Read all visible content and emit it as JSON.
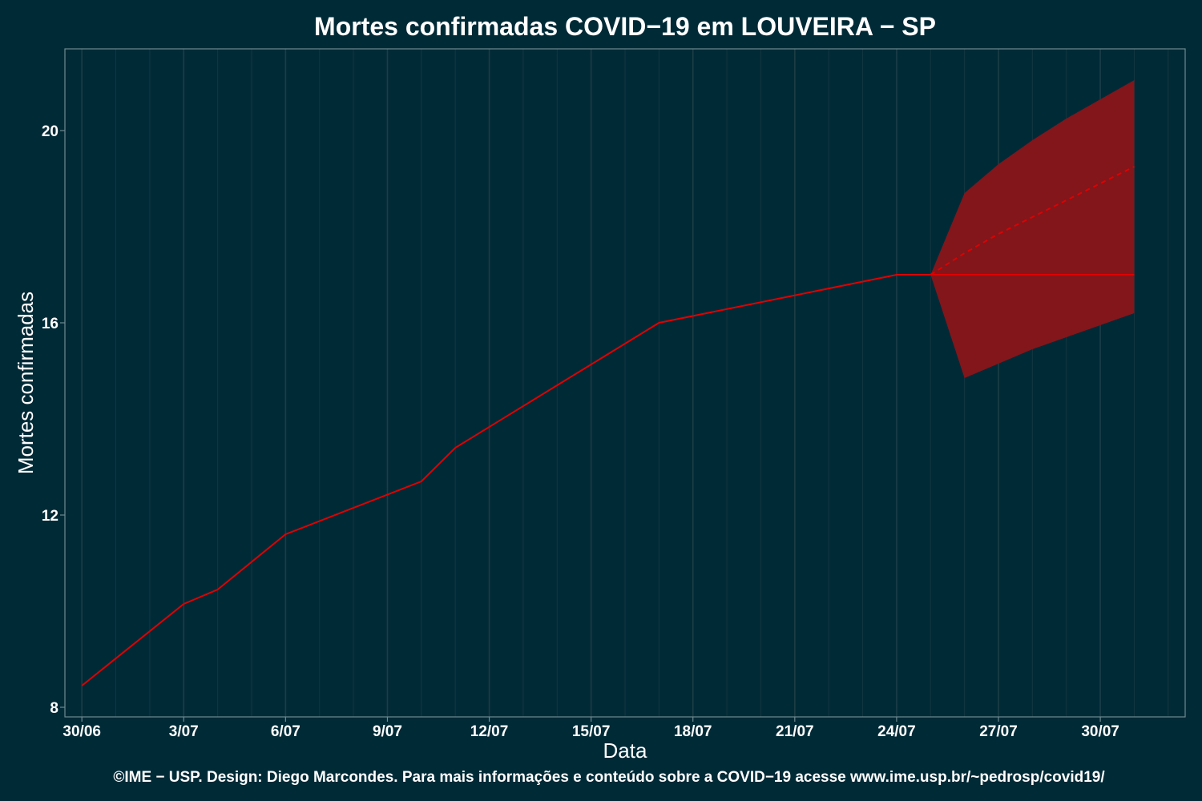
{
  "chart_data": {
    "type": "line",
    "title": "Mortes confirmadas COVID−19 em LOUVEIRA − SP",
    "xlabel": "Data",
    "ylabel": "Mortes confirmadas",
    "caption": "©IME − USP. Design: Diego Marcondes. Para mais informações e conteúdo sobre a COVID−19 acesse www.ime.usp.br/~pedrosp/covid19/",
    "x_range_days": [
      -0.5,
      32.5
    ],
    "ylim": [
      7.8,
      21.7
    ],
    "x_ticks": [
      {
        "day": 0,
        "label": "30/06"
      },
      {
        "day": 3,
        "label": "3/07"
      },
      {
        "day": 6,
        "label": "6/07"
      },
      {
        "day": 9,
        "label": "9/07"
      },
      {
        "day": 12,
        "label": "12/07"
      },
      {
        "day": 15,
        "label": "15/07"
      },
      {
        "day": 18,
        "label": "18/07"
      },
      {
        "day": 21,
        "label": "21/07"
      },
      {
        "day": 24,
        "label": "24/07"
      },
      {
        "day": 27,
        "label": "27/07"
      },
      {
        "day": 30,
        "label": "30/07"
      }
    ],
    "y_ticks": [
      8,
      12,
      16,
      20
    ],
    "grid": true,
    "colors": {
      "background": "#012a37",
      "grid": "#1f3f47",
      "axis": "#6f8a90",
      "line": "#e00000",
      "band": "#82161b"
    },
    "observed": {
      "x": [
        0,
        3,
        4,
        6,
        10,
        11,
        17,
        24,
        25
      ],
      "y": [
        8.45,
        10.15,
        10.45,
        11.6,
        12.7,
        13.4,
        16.0,
        17.0,
        17.0
      ]
    },
    "forecast_mean": {
      "x": [
        25,
        26,
        27,
        28,
        29,
        30,
        31
      ],
      "y": [
        17.0,
        17.45,
        17.85,
        18.2,
        18.55,
        18.9,
        19.25
      ]
    },
    "forecast_flat": {
      "x": [
        25,
        31
      ],
      "y": [
        17.0,
        17.0
      ]
    },
    "forecast_band": {
      "x": [
        25,
        26,
        27,
        28,
        29,
        30,
        31
      ],
      "lower": [
        17.0,
        14.85,
        15.15,
        15.45,
        15.7,
        15.95,
        16.2
      ],
      "upper": [
        17.0,
        18.7,
        19.3,
        19.8,
        20.25,
        20.65,
        21.05
      ]
    }
  }
}
